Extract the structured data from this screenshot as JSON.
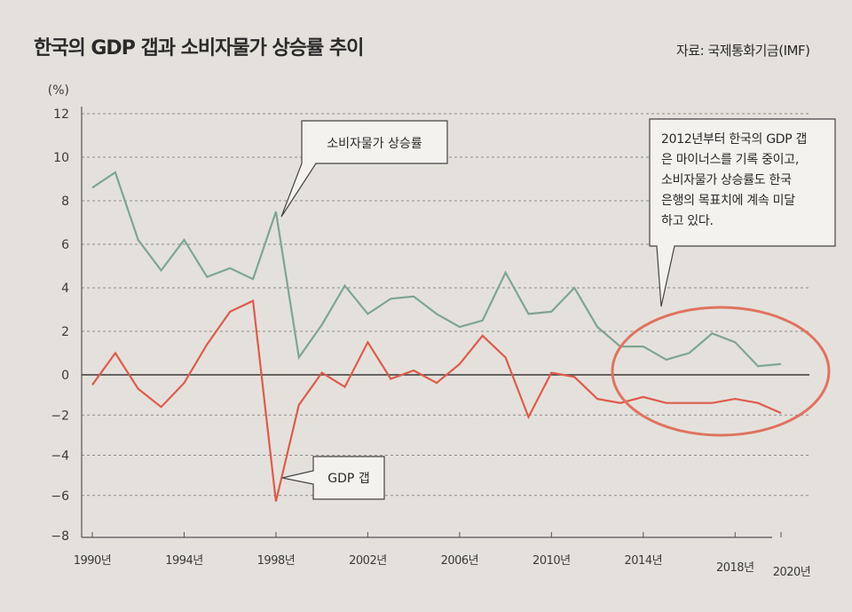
{
  "title": "한국의 GDP 갭과 소비자물가 상승률 추이",
  "source": "자료: 국제통화기금(IMF)",
  "chart_data": {
    "type": "line",
    "title": "한국의 GDP 갭과 소비자물가 상승률 추이",
    "ylabel": "(%)",
    "xlabel": "",
    "ylim": [
      -8,
      12
    ],
    "xlim": [
      1990,
      2020
    ],
    "y_ticks": [
      "12",
      "10",
      "8",
      "6",
      "4",
      "2",
      "0",
      "−2",
      "−4",
      "−6",
      "−8"
    ],
    "x_ticks": [
      "1990년",
      "1994년",
      "1998년",
      "2002년",
      "2006년",
      "2010년",
      "2014년",
      "2018년",
      "2020년"
    ],
    "grid": "dashed horizontal",
    "x": [
      1990,
      1991,
      1992,
      1993,
      1994,
      1995,
      1996,
      1997,
      1998,
      1999,
      2000,
      2001,
      2002,
      2003,
      2004,
      2005,
      2006,
      2007,
      2008,
      2009,
      2010,
      2011,
      2012,
      2013,
      2014,
      2015,
      2016,
      2017,
      2018,
      2019,
      2020
    ],
    "series": [
      {
        "name": "소비자물가 상승률",
        "color": "#7ea594",
        "values": [
          8.6,
          9.3,
          6.2,
          4.8,
          6.2,
          4.5,
          4.9,
          4.4,
          7.5,
          0.8,
          2.3,
          4.1,
          2.8,
          3.5,
          3.6,
          2.8,
          2.2,
          2.5,
          4.7,
          2.8,
          2.9,
          4.0,
          2.2,
          1.3,
          1.3,
          0.7,
          1.0,
          1.9,
          1.5,
          0.4,
          0.5
        ]
      },
      {
        "name": "GDP 갭",
        "color": "#e05a4c",
        "values": [
          -0.5,
          1.0,
          -0.7,
          -1.6,
          -0.4,
          1.4,
          2.9,
          3.4,
          -6.3,
          -1.5,
          0.1,
          -0.6,
          1.5,
          -0.2,
          0.2,
          -0.4,
          0.5,
          1.8,
          0.8,
          -2.1,
          0.1,
          -0.1,
          -1.2,
          -1.4,
          -1.1,
          -1.4,
          -1.4,
          -1.4,
          -1.2,
          -1.4,
          -1.9
        ]
      }
    ],
    "annotations": [
      "소비자물가 상승률",
      "GDP 갭",
      "2012년부터 한국의 GDP 갭",
      "은 마이너스를 기록 중이고,",
      "소비자물가 상승률도 한국",
      "은행의 목표치에 계속 미달",
      "하고 있다."
    ]
  }
}
